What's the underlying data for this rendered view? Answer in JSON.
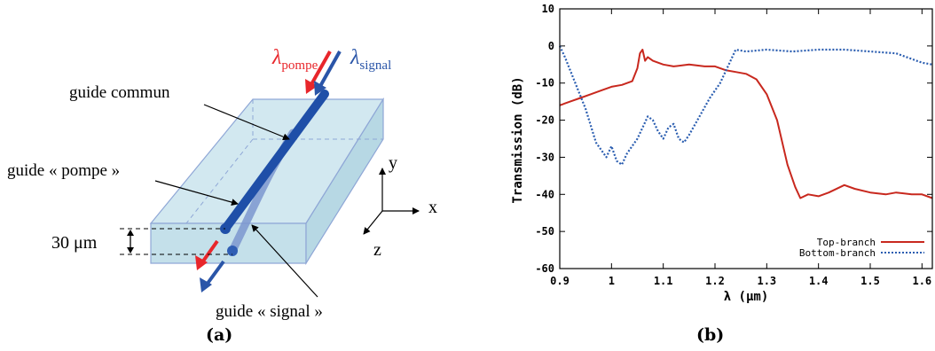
{
  "panel_a": {
    "caption": "(a)",
    "labels": {
      "lambda_pump_symbol": "λ",
      "lambda_pump_sub": "pompe",
      "lambda_signal_symbol": "λ",
      "lambda_signal_sub": "signal",
      "common_guide": "guide commun",
      "pump_guide": "guide « pompe »",
      "signal_guide": "guide « signal »",
      "spacing": "30 μm",
      "axis_x": "x",
      "axis_y": "y",
      "axis_z": "z"
    },
    "colors": {
      "pump": "#e8262b",
      "signal": "#2a55a8",
      "guide": "#1f4fa8",
      "substrate_fill": "#cfe6ee",
      "substrate_edge": "#8fa7d6"
    }
  },
  "panel_b": {
    "caption": "(b)",
    "chart_data": {
      "type": "line",
      "xlabel": "λ (μm)",
      "ylabel": "Transmission (dB)",
      "xlim": [
        0.9,
        1.62
      ],
      "ylim": [
        -60,
        10
      ],
      "xticks": [
        "0.9",
        "1",
        "1.1",
        "1.2",
        "1.3",
        "1.4",
        "1.5",
        "1.6"
      ],
      "yticks": [
        "10",
        "0",
        "-10",
        "-20",
        "-30",
        "-40",
        "-50",
        "-60"
      ],
      "legend_position": "bottom-right",
      "series": [
        {
          "name": "Top-branch",
          "color": "#c8281e",
          "style": "solid",
          "x": [
            0.9,
            0.92,
            0.94,
            0.96,
            0.98,
            1.0,
            1.02,
            1.04,
            1.05,
            1.055,
            1.06,
            1.065,
            1.07,
            1.08,
            1.1,
            1.12,
            1.15,
            1.18,
            1.2,
            1.22,
            1.24,
            1.26,
            1.28,
            1.3,
            1.32,
            1.34,
            1.355,
            1.365,
            1.38,
            1.4,
            1.42,
            1.45,
            1.47,
            1.5,
            1.53,
            1.55,
            1.58,
            1.6,
            1.62
          ],
          "y": [
            -16,
            -15,
            -14,
            -13,
            -12,
            -11,
            -10.5,
            -9.5,
            -6,
            -2,
            -1,
            -4,
            -3,
            -4,
            -5,
            -5.5,
            -5,
            -5.5,
            -5.5,
            -6.5,
            -7,
            -7.5,
            -9,
            -13,
            -20,
            -32,
            -38,
            -41,
            -40,
            -40.5,
            -39.5,
            -37.5,
            -38.5,
            -39.5,
            -40,
            -39.5,
            -40,
            -40,
            -41
          ]
        },
        {
          "name": "Bottom-branch",
          "color": "#2a5db0",
          "style": "dotted",
          "x": [
            0.9,
            0.91,
            0.93,
            0.95,
            0.97,
            0.99,
            1.0,
            1.01,
            1.02,
            1.03,
            1.05,
            1.07,
            1.08,
            1.09,
            1.1,
            1.11,
            1.12,
            1.13,
            1.14,
            1.15,
            1.17,
            1.19,
            1.21,
            1.23,
            1.24,
            1.26,
            1.3,
            1.35,
            1.4,
            1.45,
            1.5,
            1.55,
            1.58,
            1.6,
            1.62
          ],
          "y": [
            0,
            -3,
            -10,
            -17,
            -26,
            -30,
            -27,
            -31,
            -32,
            -29,
            -25,
            -19,
            -20,
            -23,
            -25,
            -22,
            -21,
            -25,
            -26,
            -24,
            -19,
            -14,
            -10,
            -4,
            -1,
            -1.5,
            -1,
            -1.5,
            -1,
            -1,
            -1.5,
            -2,
            -3.5,
            -4.5,
            -5
          ]
        }
      ]
    }
  }
}
